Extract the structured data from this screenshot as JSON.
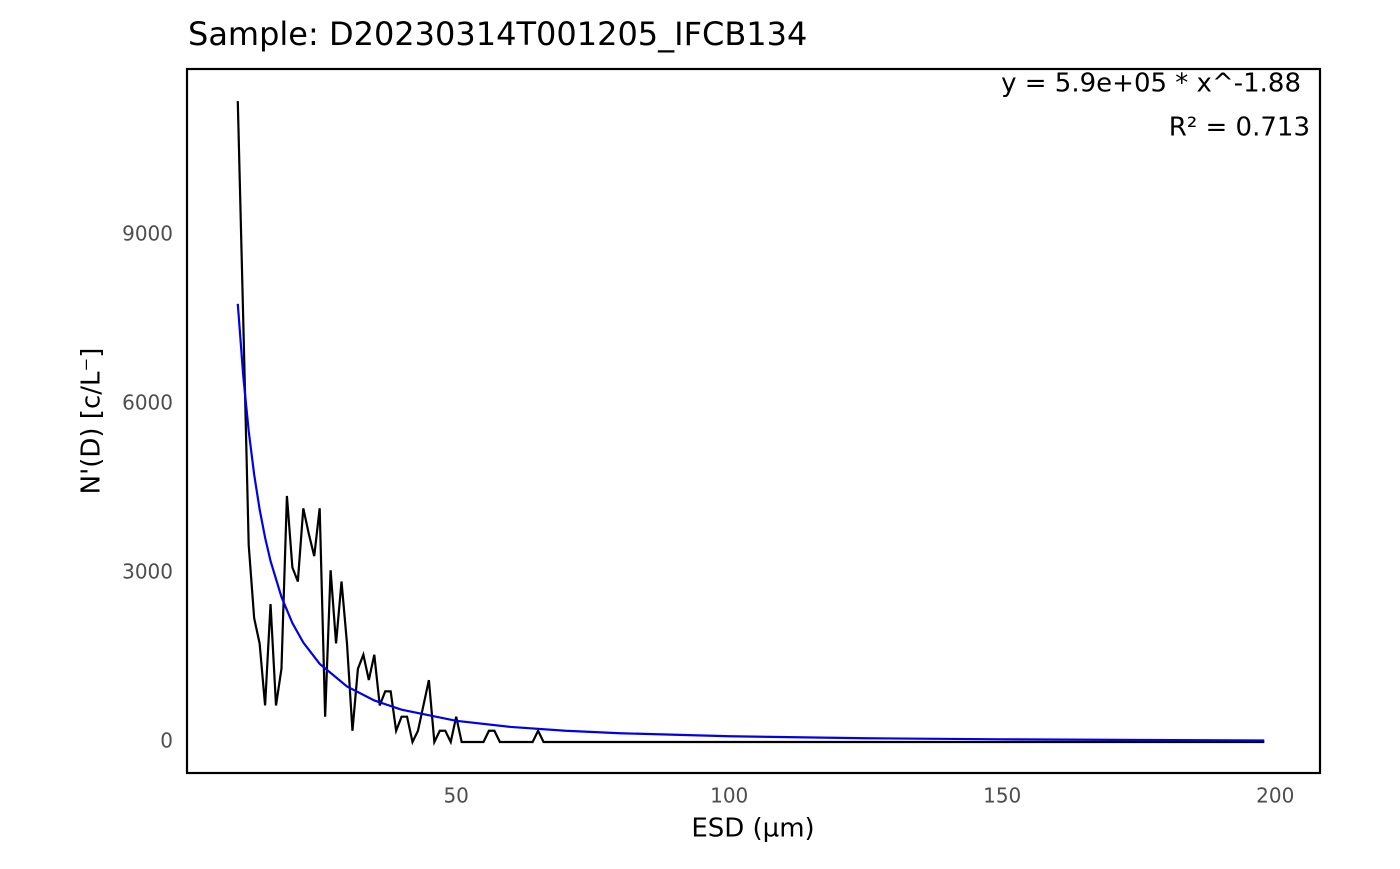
{
  "chart_data": {
    "type": "line",
    "title": "Sample: D20230314T001205_IFCB134",
    "xlabel": "ESD (µm)",
    "ylabel": "N'(D) [c/L⁻]",
    "annotations": [
      "y = 5.9e+05 * x^-1.88",
      "R² = 0.713"
    ],
    "xlim": [
      0.7,
      208.2
    ],
    "ylim": [
      -550,
      11950
    ],
    "xticks": [
      50,
      100,
      150,
      200
    ],
    "yticks": [
      0,
      3000,
      6000,
      9000
    ],
    "grid": false,
    "series": [
      {
        "color": "#000000",
        "x": [
          10,
          11,
          12,
          13,
          14,
          15,
          16,
          17,
          18,
          19,
          20,
          21,
          22,
          23,
          24,
          25,
          26,
          27,
          28,
          29,
          30,
          31,
          32,
          33,
          34,
          35,
          36,
          37,
          38,
          39,
          40,
          41,
          42,
          43,
          44,
          45,
          46,
          47,
          48,
          49,
          50,
          51,
          52,
          53,
          54,
          55,
          56,
          57,
          58,
          59,
          60,
          61,
          62,
          63,
          64,
          65,
          66,
          198
        ],
        "values": [
          11380,
          7500,
          3500,
          2200,
          1750,
          650,
          2450,
          650,
          1300,
          4370,
          3100,
          2850,
          4150,
          3700,
          3300,
          4150,
          450,
          3050,
          1750,
          2850,
          1750,
          200,
          1300,
          1550,
          1100,
          1550,
          650,
          900,
          900,
          200,
          450,
          450,
          0,
          200,
          650,
          1100,
          0,
          200,
          200,
          0,
          450,
          0,
          0,
          0,
          0,
          0,
          200,
          200,
          0,
          0,
          0,
          0,
          0,
          0,
          0,
          200,
          0,
          0
        ]
      },
      {
        "color": "#0000ee",
        "x": [
          10,
          11,
          12,
          13,
          14,
          15,
          16,
          18,
          20,
          22,
          25,
          30,
          35,
          40,
          50,
          60,
          70,
          80,
          100,
          125,
          150,
          175,
          198
        ],
        "values": [
          7780,
          6503,
          5522,
          4750,
          4133,
          3630,
          3215,
          2576,
          2113,
          1766,
          1389,
          986,
          738,
          574,
          377,
          268,
          200,
          156,
          102.6,
          67.4,
          47.8,
          35.8,
          28.4
        ]
      }
    ]
  }
}
